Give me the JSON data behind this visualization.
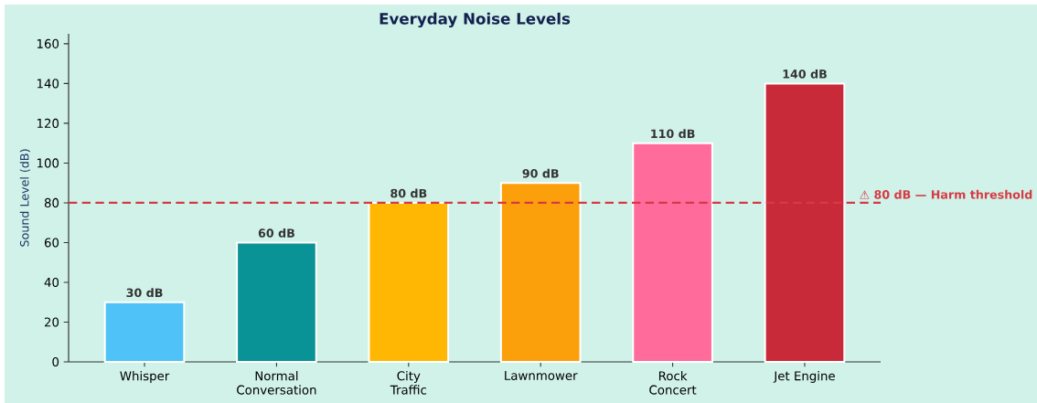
{
  "chart_data": {
    "type": "bar",
    "title": "Everyday Noise Levels",
    "ylabel": "Sound Level (dB)",
    "categories": [
      "Whisper",
      "Normal\nConversation",
      "City\nTraffic",
      "Lawnmower",
      "Rock\nConcert",
      "Jet Engine"
    ],
    "values": [
      30,
      60,
      80,
      90,
      110,
      140
    ],
    "colors": [
      "#4fc3f7",
      "#0a9396",
      "#ffb703",
      "#fb9f0b",
      "#ff6b9a",
      "#c92a39"
    ],
    "value_labels": [
      "30 dB",
      "60 dB",
      "80 dB",
      "90 dB",
      "110 dB",
      "140 dB"
    ],
    "ylim": [
      0,
      165
    ],
    "yticks": [
      0,
      20,
      40,
      60,
      80,
      100,
      120,
      140,
      160
    ],
    "ref_lines": [
      {
        "axis": "y",
        "value": 80,
        "label": "⚠ 80 dB — Harm threshold",
        "color": "#d63a45",
        "line_style": "dashed"
      }
    ],
    "grid": false
  }
}
